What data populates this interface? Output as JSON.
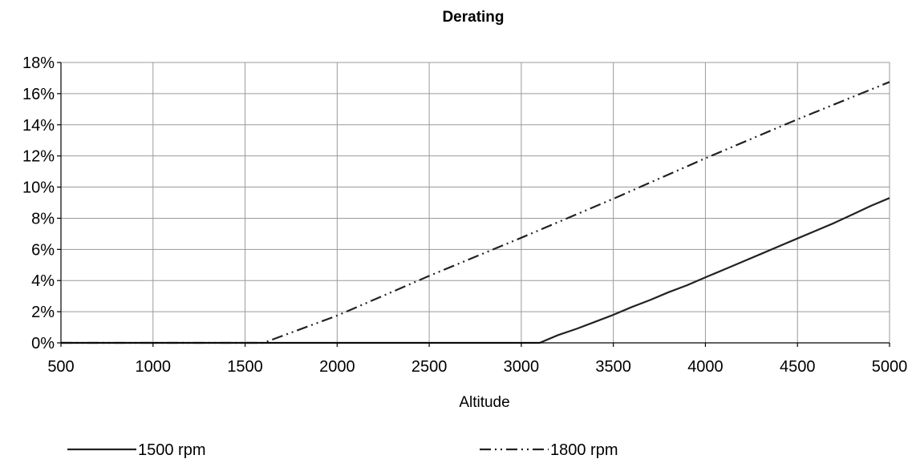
{
  "chart_data": {
    "type": "line",
    "title": "Derating",
    "xlabel": "Altitude",
    "ylabel": "",
    "xlim": [
      500,
      5000
    ],
    "ylim": [
      0,
      18
    ],
    "x_ticks": [
      "500",
      "1000",
      "1500",
      "2000",
      "2500",
      "3000",
      "3500",
      "4000",
      "4500",
      "5000"
    ],
    "y_ticks": [
      "0%",
      "2%",
      "4%",
      "6%",
      "8%",
      "10%",
      "12%",
      "14%",
      "16%",
      "18%"
    ],
    "grid": true,
    "legend_position": "bottom",
    "series": [
      {
        "name": "1500 rpm",
        "line_style": "solid",
        "color": "#222222",
        "x": [
          500,
          1000,
          1500,
          2000,
          2500,
          3000,
          3100,
          3200,
          3300,
          3400,
          3500,
          3600,
          3700,
          3800,
          3900,
          4000,
          4100,
          4200,
          4300,
          4400,
          4500,
          4600,
          4700,
          4800,
          4900,
          5000
        ],
        "y": [
          0,
          0,
          0,
          0,
          0,
          0,
          0,
          0.5,
          0.9,
          1.35,
          1.8,
          2.3,
          2.75,
          3.25,
          3.7,
          4.2,
          4.7,
          5.2,
          5.7,
          6.2,
          6.7,
          7.2,
          7.7,
          8.25,
          8.8,
          9.3
        ]
      },
      {
        "name": "1800 rpm",
        "line_style": "dash-dot-dot",
        "color": "#222222",
        "x": [
          500,
          1000,
          1500,
          1600,
          2000,
          2500,
          3000,
          3500,
          4000,
          4500,
          5000
        ],
        "y": [
          0,
          0,
          0,
          0,
          1.75,
          4.3,
          6.75,
          9.25,
          11.85,
          14.35,
          16.75
        ]
      }
    ]
  }
}
